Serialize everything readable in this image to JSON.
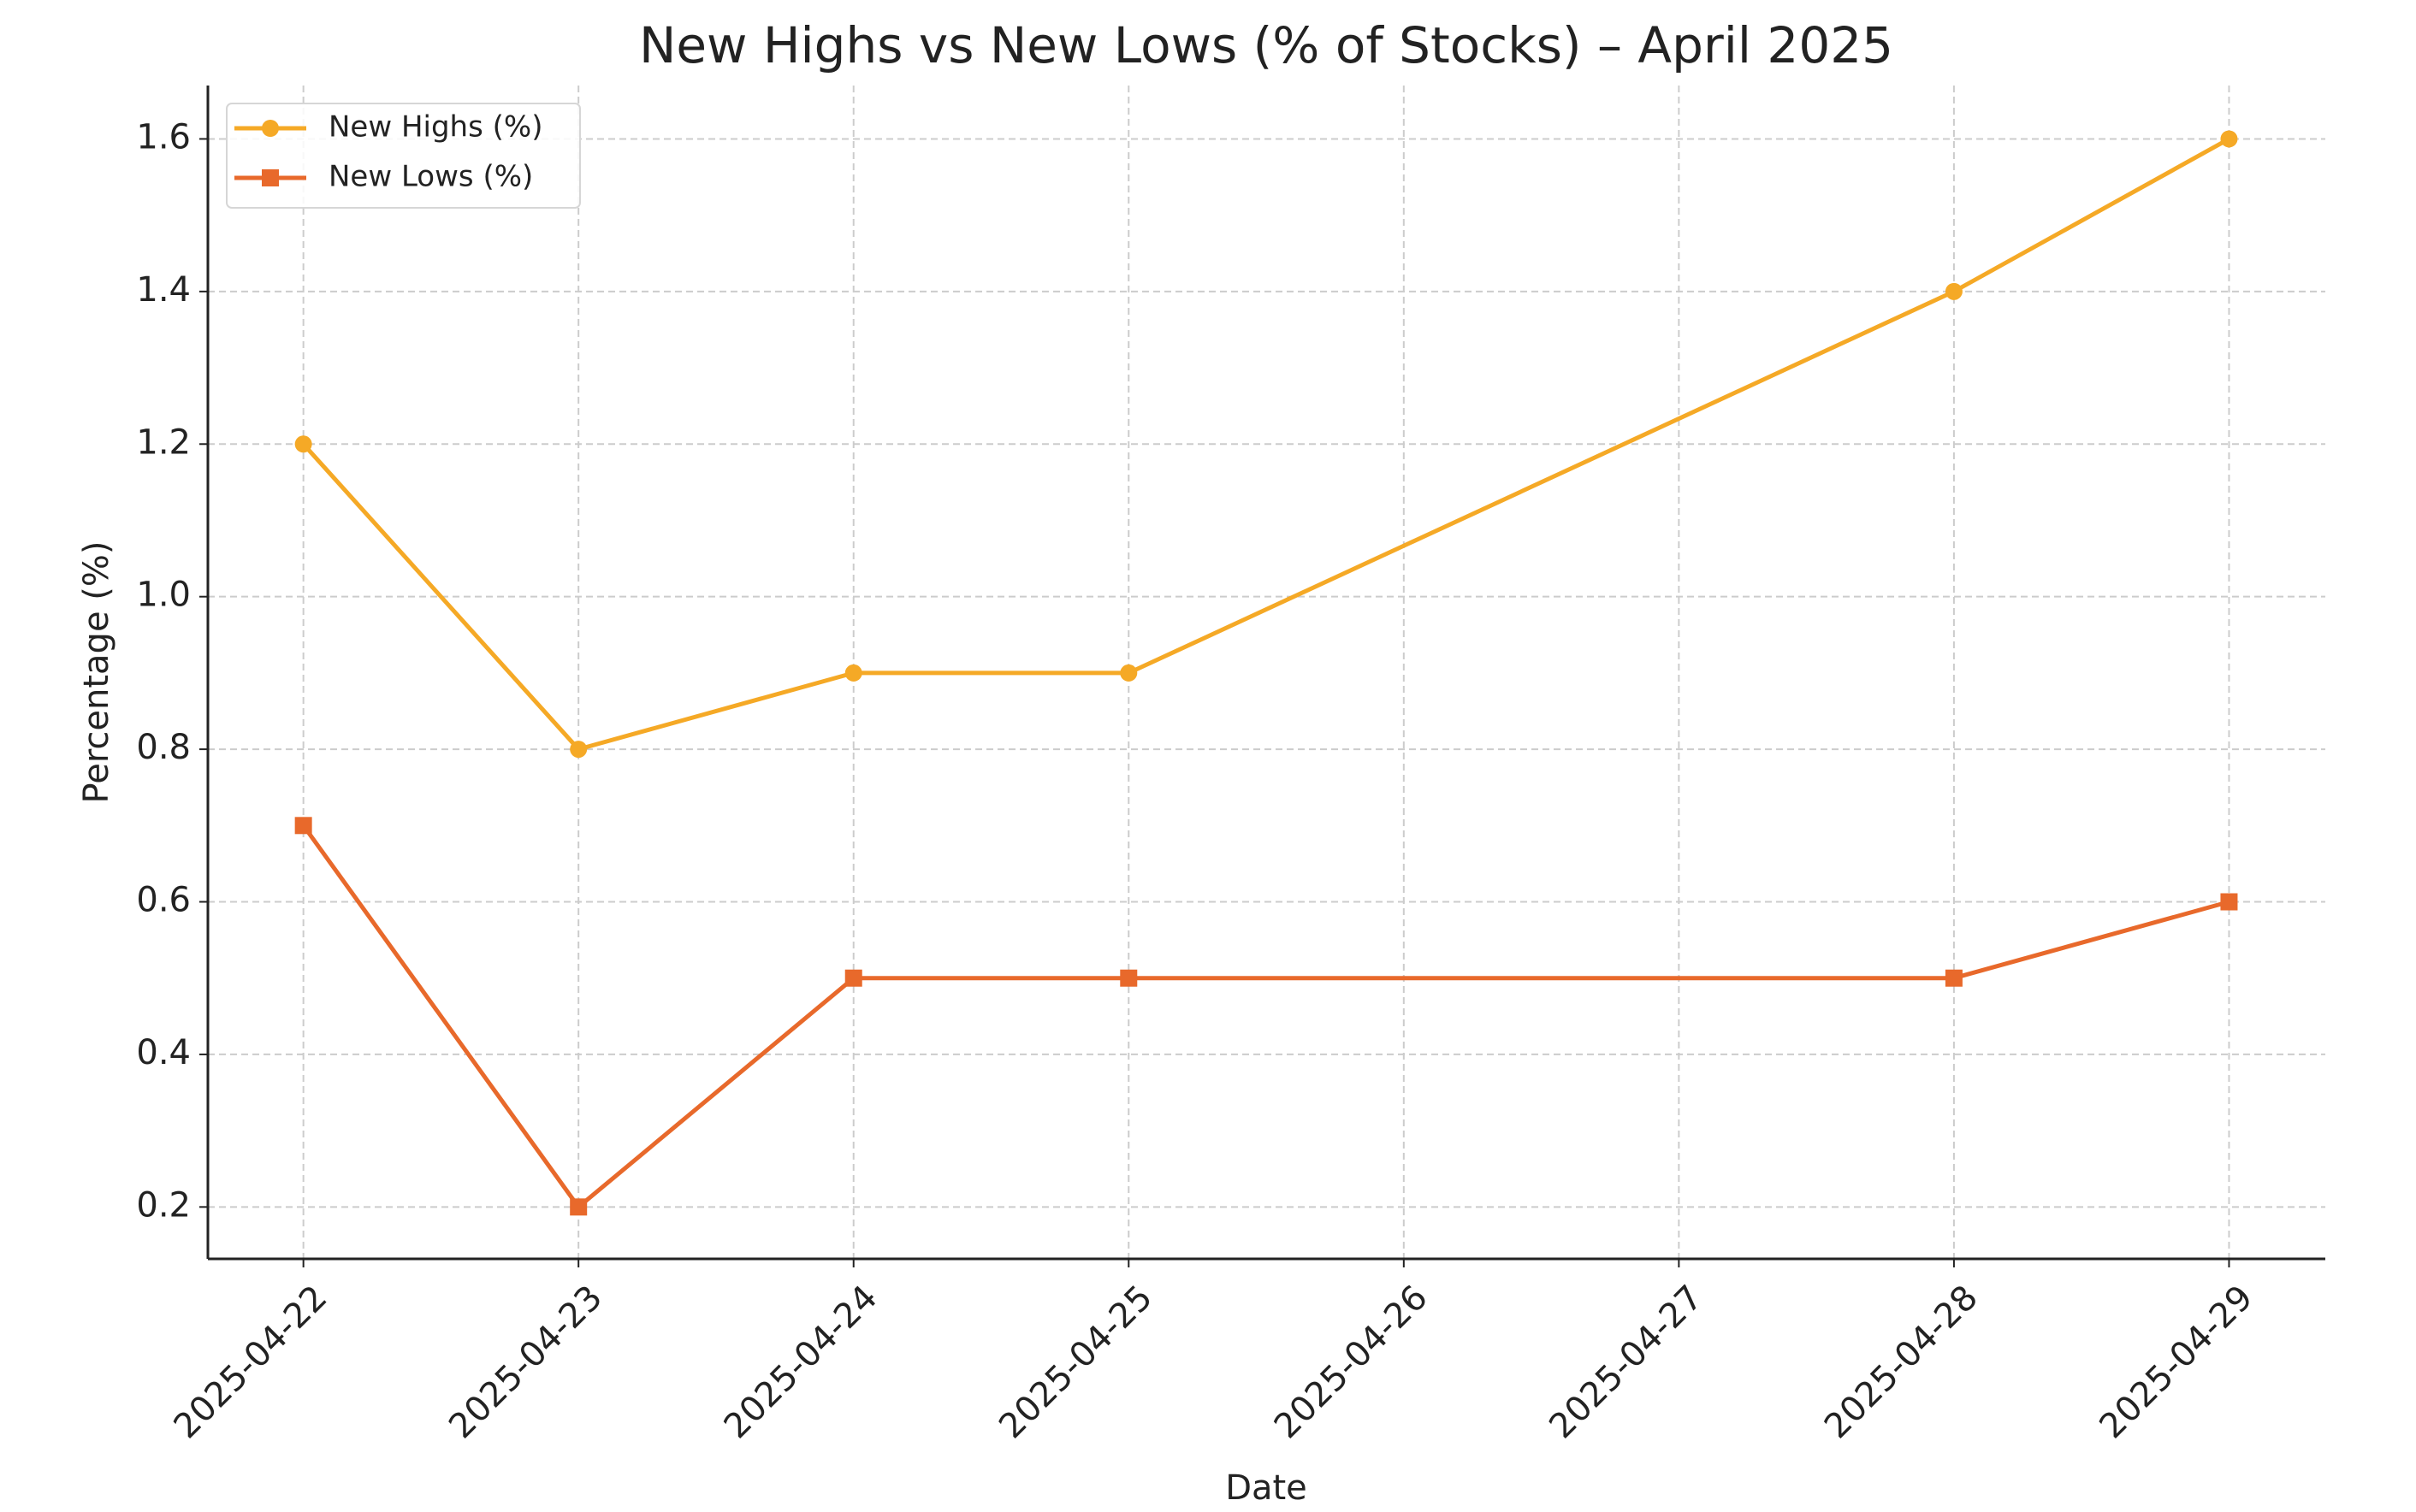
{
  "chart_data": {
    "type": "line",
    "title": "New Highs vs New Lows (% of Stocks) – April 2025",
    "x_label": "Date",
    "y_label": "Percentage (%)",
    "x": [
      "2025-04-22",
      "2025-04-23",
      "2025-04-24",
      "2025-04-25",
      "2025-04-28",
      "2025-04-29"
    ],
    "series": [
      {
        "name": "New Highs (%)",
        "color": "#f5a926",
        "marker": "circle",
        "values": [
          1.2,
          0.8,
          0.9,
          0.9,
          1.4,
          1.6
        ]
      },
      {
        "name": "New Lows (%)",
        "color": "#e8692b",
        "marker": "square",
        "values": [
          0.7,
          0.2,
          0.5,
          0.5,
          0.5,
          0.6
        ]
      }
    ],
    "xlim": [
      "2025-04-21T15:40:00Z",
      "2025-04-29T08:24:00Z"
    ],
    "xticks": [
      "2025-04-22",
      "2025-04-23",
      "2025-04-24",
      "2025-04-25",
      "2025-04-26",
      "2025-04-27",
      "2025-04-28",
      "2025-04-29"
    ],
    "ylim": [
      0.132,
      1.67
    ],
    "yticks": [
      0.2,
      0.4,
      0.6,
      0.8,
      {
        "value": 1,
        "label": "1.0"
      },
      1.2,
      1.4,
      1.6
    ],
    "grid": true,
    "legend": "upper left"
  }
}
